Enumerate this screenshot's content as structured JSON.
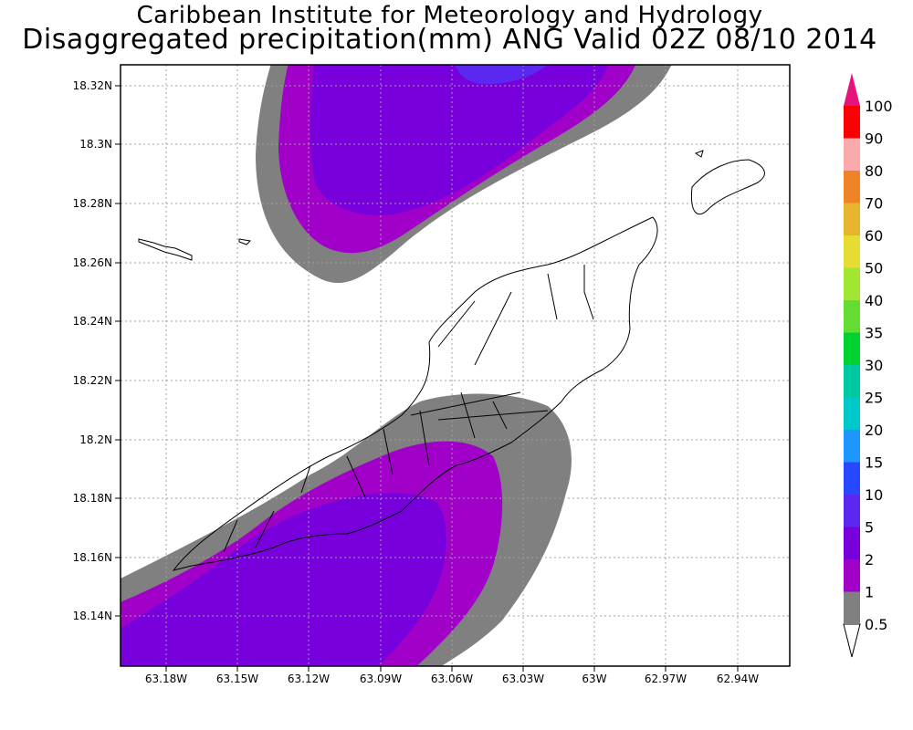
{
  "title_line1": "Caribbean Institute for Meteorology and Hydrology",
  "title_line2": "Disaggregated precipitation(mm) ANG Valid 02Z 08/10 2014",
  "map": {
    "lat_ticks": [
      "18.32N",
      "18.3N",
      "18.28N",
      "18.26N",
      "18.24N",
      "18.22N",
      "18.2N",
      "18.18N",
      "18.16N",
      "18.14N"
    ],
    "lon_ticks": [
      "63.18W",
      "63.15W",
      "63.12W",
      "63.09W",
      "63.06W",
      "63.03W",
      "63W",
      "62.97W",
      "62.94W"
    ],
    "grid": true,
    "grid_style": "dotted"
  },
  "colorbar": {
    "levels": [
      "0.5",
      "1",
      "2",
      "5",
      "10",
      "15",
      "20",
      "25",
      "30",
      "35",
      "40",
      "50",
      "60",
      "70",
      "80",
      "90",
      "100"
    ],
    "colors": [
      "#808080",
      "#a000c8",
      "#7800dc",
      "#5a28f0",
      "#2848ff",
      "#1e96ff",
      "#00c8c8",
      "#00c8a0",
      "#00d232",
      "#64dc32",
      "#a0e632",
      "#e6dc32",
      "#e6b42d",
      "#f08228",
      "#faaaaa",
      "#fa0000",
      "#f03c3c",
      "#e6147a"
    ]
  },
  "precip_colors": {
    "level_0_5": "#808080",
    "level_1": "#a000c8",
    "level_2": "#7800dc",
    "level_5": "#5a28f0"
  }
}
